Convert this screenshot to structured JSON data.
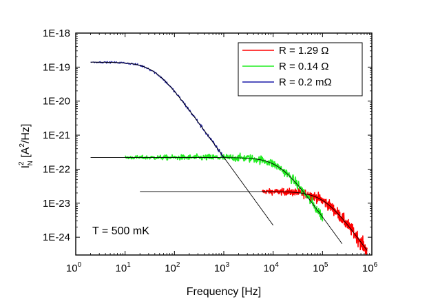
{
  "chart_data": {
    "type": "line",
    "title": "",
    "xlabel": "Frequency [Hz]",
    "ylabel_main": "I",
    "ylabel_sub": "N",
    "ylabel_sup": "2",
    "ylabel_rest": " [A",
    "ylabel_unit_sup": "2",
    "ylabel_tail": "/Hz]",
    "x_scale": "log",
    "y_scale": "log",
    "xlim": [
      1,
      1000000
    ],
    "ylim": [
      3e-25,
      1e-18
    ],
    "x_ticks": [
      {
        "base": "10",
        "exp": "0",
        "value": 1
      },
      {
        "base": "10",
        "exp": "1",
        "value": 10
      },
      {
        "base": "10",
        "exp": "2",
        "value": 100
      },
      {
        "base": "10",
        "exp": "3",
        "value": 1000
      },
      {
        "base": "10",
        "exp": "4",
        "value": 10000
      },
      {
        "base": "10",
        "exp": "5",
        "value": 100000
      },
      {
        "base": "10",
        "exp": "6",
        "value": 1000000
      }
    ],
    "y_ticks": [
      {
        "label": "1E-18",
        "value": 1e-18
      },
      {
        "label": "1E-19",
        "value": 1e-19
      },
      {
        "label": "1E-20",
        "value": 1e-20
      },
      {
        "label": "1E-21",
        "value": 1e-21
      },
      {
        "label": "1E-22",
        "value": 1e-22
      },
      {
        "label": "1E-23",
        "value": 1e-23
      },
      {
        "label": "1E-24",
        "value": 1e-24
      }
    ],
    "annotation": "T = 500 mK",
    "legend_position": "top-right",
    "series": [
      {
        "name": "R = 1.29 Ω",
        "color": "#ff0000",
        "plateau": 2.2e-23,
        "corner": 110000.0,
        "f_min": 6000,
        "f_max": 800000,
        "noise": 0.16,
        "density": 420
      },
      {
        "name": "R = 0.14 Ω",
        "color": "#22ee22",
        "plateau": 2.2e-22,
        "corner": 13500.0,
        "f_min": 10,
        "f_max": 100000,
        "noise": 0.12,
        "density": 520
      },
      {
        "name": "R = 0.2 mΩ",
        "color": "#1a1aa8",
        "plateau": 1.4e-19,
        "corner": 40,
        "f_min": 2,
        "f_max": 1000,
        "noise": 0.05,
        "density": 300
      }
    ],
    "fit_lines": [
      {
        "name": "fit-1.29",
        "plateau": 2.2e-23,
        "corner": 110000.0,
        "f_start": 20,
        "f_end": 800000
      },
      {
        "name": "fit-0.14",
        "plateau": 2.2e-22,
        "corner": 13500.0,
        "f_start": 2,
        "f_end": 250000
      },
      {
        "name": "fit-0.2m",
        "plateau": 1.4e-19,
        "corner": 40,
        "f_start": 2,
        "f_end": 10000
      }
    ]
  }
}
